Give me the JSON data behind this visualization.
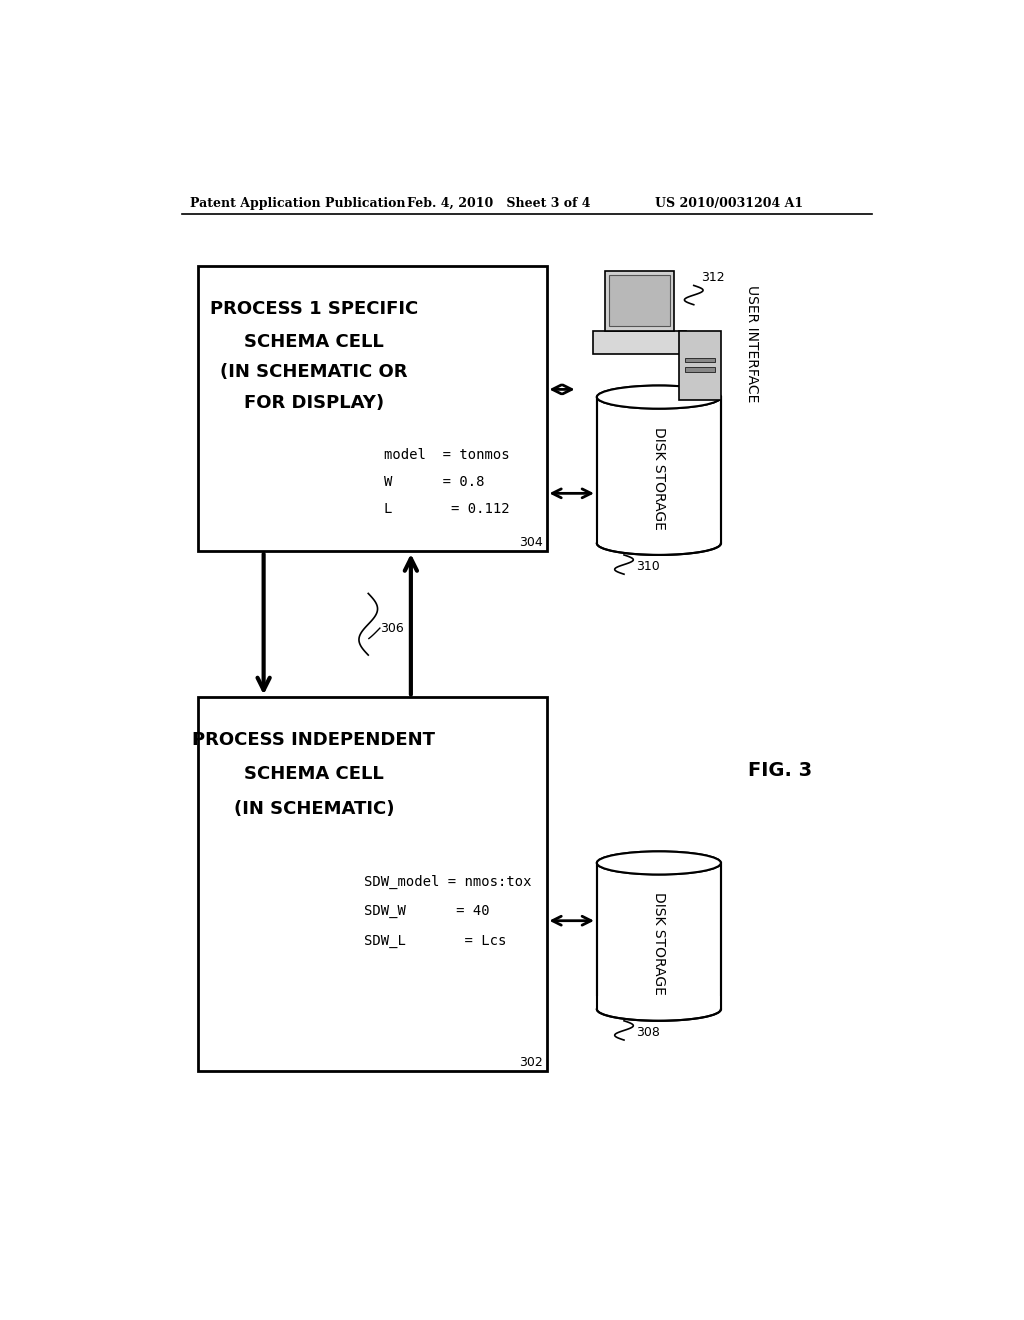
{
  "bg_color": "#ffffff",
  "header_left": "Patent Application Publication",
  "header_center": "Feb. 4, 2010   Sheet 3 of 4",
  "header_right": "US 2010/0031204 A1",
  "fig_label": "FIG. 3",
  "box_top_title1": "PROCESS 1 SPECIFIC",
  "box_top_title2": "SCHEMA CELL",
  "box_top_title3": "(IN SCHEMATIC OR",
  "box_top_title4": "FOR DISPLAY)",
  "box_top_text1": "model  = tonmos",
  "box_top_text2": "W      = 0.8",
  "box_top_text3": "L       = 0.112",
  "box_top_label": "304",
  "box_bot_title1": "PROCESS INDEPENDENT",
  "box_bot_title2": "SCHEMA CELL",
  "box_bot_title3": "(IN SCHEMATIC)",
  "box_bot_text1": "SDW_model = nmos:tox",
  "box_bot_text2": "SDW_W      = 40",
  "box_bot_text3": "SDW_L       = Lcs",
  "box_bot_label": "302",
  "disk_top_label": "310",
  "disk_top_text": "DISK STORAGE",
  "disk_bot_label": "308",
  "disk_bot_text": "DISK STORAGE",
  "ui_label": "312",
  "ui_text": "USER INTERFACE",
  "arrow_label": "306"
}
